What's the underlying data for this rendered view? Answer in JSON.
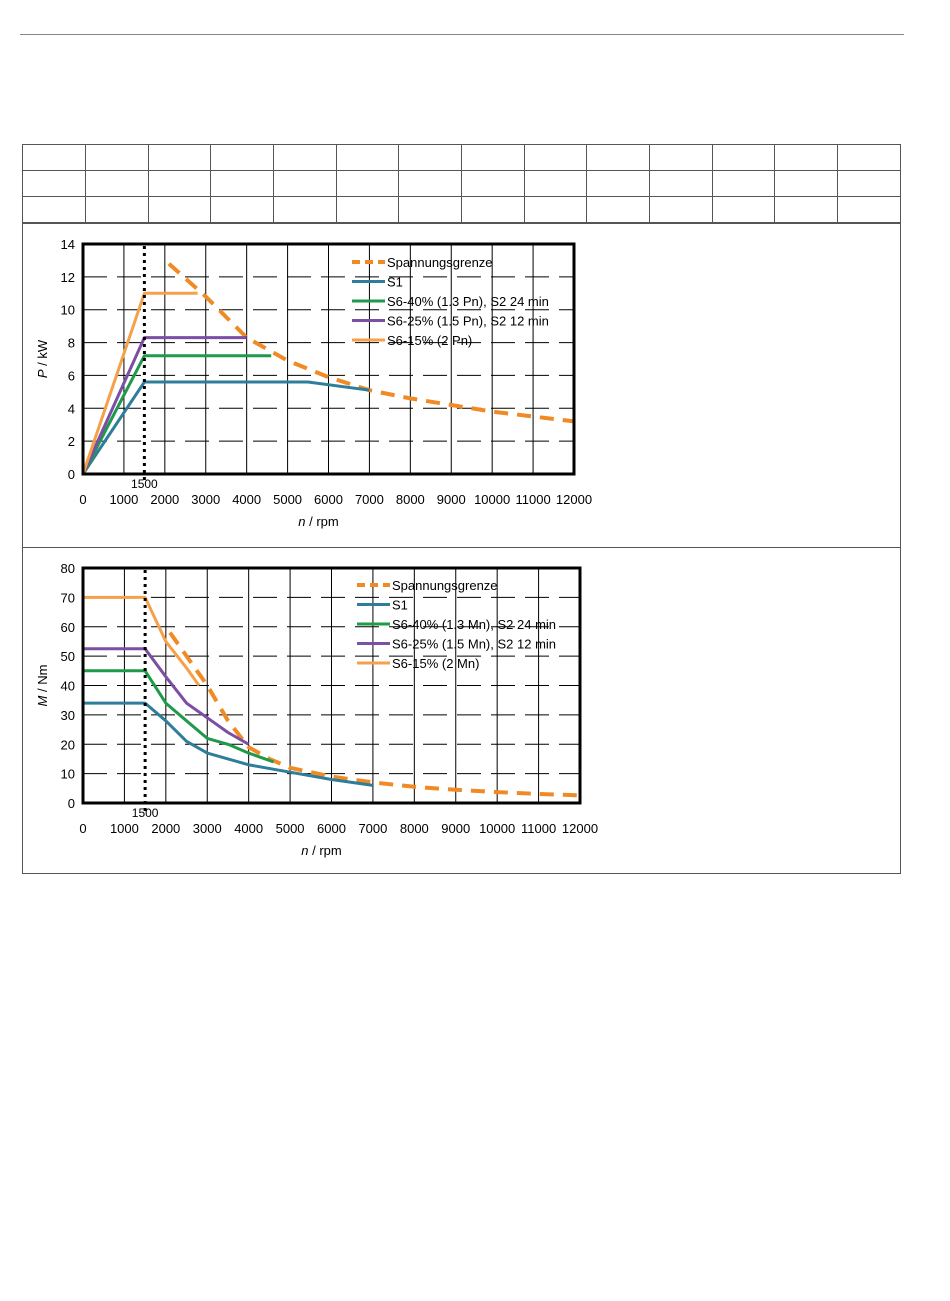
{
  "header_table": {
    "rows": [
      [
        "",
        "",
        "",
        "",
        "",
        "",
        "",
        "",
        "",
        "",
        "",
        "",
        "",
        ""
      ],
      [
        "",
        "",
        "",
        "",
        "",
        "",
        "",
        "",
        "",
        "",
        "",
        "",
        "",
        ""
      ],
      [
        "",
        "",
        "",
        "",
        "",
        "",
        "",
        "",
        "",
        "",
        "",
        "",
        "",
        ""
      ]
    ]
  },
  "colors": {
    "voltage_limit": "#f08a24",
    "s1": "#2e7d9a",
    "s6_40": "#1f9a4a",
    "s6_25": "#7b4fa3",
    "s6_15": "#f5a04a"
  },
  "chart_data": [
    {
      "type": "line",
      "xlabel_var": "n",
      "xlabel_unit": " / rpm",
      "ylabel_var": "P",
      "ylabel_unit": " / kW",
      "xlim": [
        0,
        12000
      ],
      "ylim": [
        0,
        14
      ],
      "xticks": [
        "0",
        "1000",
        "2000",
        "3000",
        "4000",
        "5000",
        "6000",
        "7000",
        "8000",
        "9000",
        "10000",
        "11000",
        "12000"
      ],
      "yticks": [
        "0",
        "2",
        "4",
        "6",
        "8",
        "10",
        "12",
        "14"
      ],
      "marker_label": "1500",
      "marker_x": 1500,
      "grid": true,
      "legend_position": "top-right",
      "series": [
        {
          "name": "Spannungsgrenze",
          "style": "dashed",
          "color_key": "voltage_limit",
          "points": [
            [
              2100,
              12.8
            ],
            [
              3000,
              10.8
            ],
            [
              4000,
              8.3
            ],
            [
              5000,
              6.9
            ],
            [
              6000,
              5.9
            ],
            [
              7000,
              5.1
            ],
            [
              8000,
              4.6
            ],
            [
              9000,
              4.2
            ],
            [
              10000,
              3.8
            ],
            [
              11000,
              3.5
            ],
            [
              12000,
              3.2
            ]
          ]
        },
        {
          "name": "S1",
          "style": "solid",
          "color_key": "s1",
          "points": [
            [
              0,
              0
            ],
            [
              1500,
              5.6
            ],
            [
              5500,
              5.6
            ],
            [
              7000,
              5.1
            ]
          ]
        },
        {
          "name": "S6-40% (1.3 Pn), S2 24 min",
          "style": "solid",
          "color_key": "s6_40",
          "points": [
            [
              0,
              0
            ],
            [
              1500,
              7.2
            ],
            [
              4600,
              7.2
            ]
          ]
        },
        {
          "name": "S6-25% (1.5 Pn), S2 12 min",
          "style": "solid",
          "color_key": "s6_25",
          "points": [
            [
              0,
              0
            ],
            [
              1500,
              8.3
            ],
            [
              4000,
              8.3
            ]
          ]
        },
        {
          "name": "S6-15% (2 Pn)",
          "style": "solid",
          "color_key": "s6_15",
          "points": [
            [
              0,
              0
            ],
            [
              1500,
              11.0
            ],
            [
              2800,
              11.0
            ]
          ]
        }
      ]
    },
    {
      "type": "line",
      "xlabel_var": "n",
      "xlabel_unit": " / rpm",
      "ylabel_var": "M",
      "ylabel_unit": " / Nm",
      "xlim": [
        0,
        12000
      ],
      "ylim": [
        0,
        80
      ],
      "xticks": [
        "0",
        "1000",
        "2000",
        "3000",
        "4000",
        "5000",
        "6000",
        "7000",
        "8000",
        "9000",
        "10000",
        "11000",
        "12000"
      ],
      "yticks": [
        "0",
        "10",
        "20",
        "30",
        "40",
        "50",
        "60",
        "70",
        "80"
      ],
      "marker_label": "1500",
      "marker_x": 1500,
      "grid": true,
      "legend_position": "top-right",
      "series": [
        {
          "name": "Spannungsgrenze",
          "style": "dashed",
          "color_key": "voltage_limit",
          "points": [
            [
              2100,
              58
            ],
            [
              2600,
              48
            ],
            [
              3000,
              40
            ],
            [
              3500,
              28
            ],
            [
              4000,
              19
            ],
            [
              4500,
              15
            ],
            [
              5000,
              12
            ],
            [
              6000,
              9
            ],
            [
              7000,
              7
            ],
            [
              8000,
              5.5
            ],
            [
              9000,
              4.5
            ],
            [
              10000,
              3.7
            ],
            [
              11000,
              3.1
            ],
            [
              12000,
              2.6
            ]
          ]
        },
        {
          "name": "S1",
          "style": "solid",
          "color_key": "s1",
          "points": [
            [
              0,
              34
            ],
            [
              1500,
              34
            ],
            [
              2000,
              28
            ],
            [
              2500,
              21
            ],
            [
              3000,
              17
            ],
            [
              3500,
              15
            ],
            [
              4000,
              13
            ],
            [
              5000,
              10.5
            ],
            [
              6000,
              8
            ],
            [
              7000,
              6
            ]
          ]
        },
        {
          "name": "S6-40% (1.3 Mn), S2 24 min",
          "style": "solid",
          "color_key": "s6_40",
          "points": [
            [
              0,
              45
            ],
            [
              1500,
              45
            ],
            [
              2000,
              34
            ],
            [
              2500,
              28
            ],
            [
              3000,
              22
            ],
            [
              3500,
              20
            ],
            [
              4000,
              17
            ],
            [
              4600,
              14
            ]
          ]
        },
        {
          "name": "S6-25% (1.5 Mn), S2 12 min",
          "style": "solid",
          "color_key": "s6_25",
          "points": [
            [
              0,
              52.5
            ],
            [
              1500,
              52.5
            ],
            [
              2000,
              43
            ],
            [
              2500,
              34
            ],
            [
              3000,
              29
            ],
            [
              3500,
              24
            ],
            [
              4000,
              20
            ]
          ]
        },
        {
          "name": "S6-15% (2 Mn)",
          "style": "solid",
          "color_key": "s6_15",
          "points": [
            [
              0,
              70
            ],
            [
              1500,
              70
            ],
            [
              2000,
              55
            ],
            [
              2500,
              46
            ],
            [
              2800,
              40
            ]
          ]
        }
      ]
    }
  ]
}
